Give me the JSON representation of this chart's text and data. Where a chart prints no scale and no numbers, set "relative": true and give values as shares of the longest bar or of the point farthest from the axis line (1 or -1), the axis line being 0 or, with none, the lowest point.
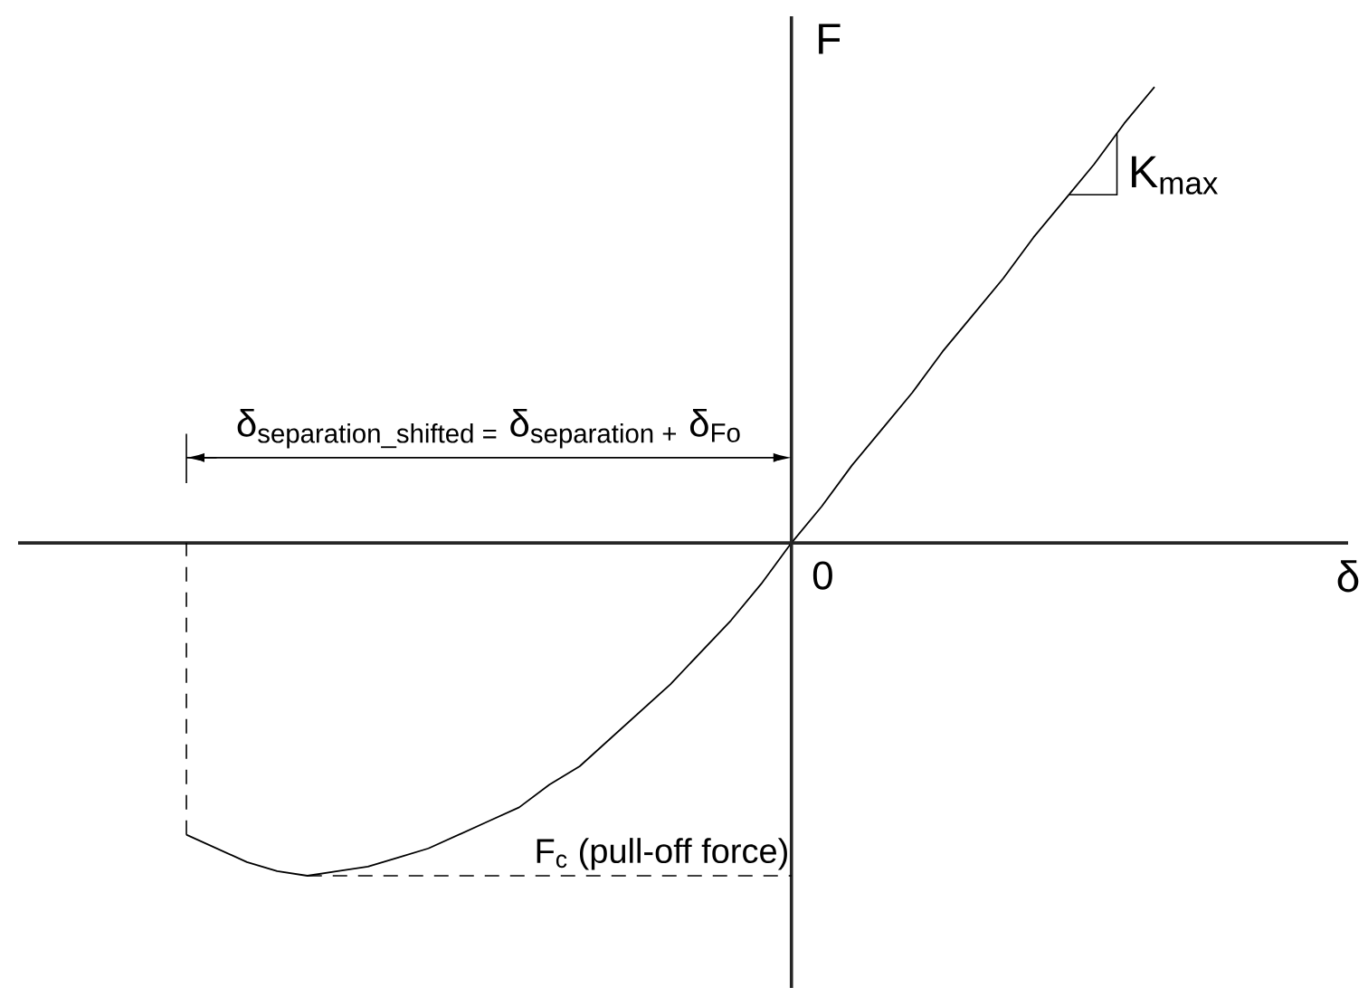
{
  "chart_data": {
    "type": "line",
    "relative": true,
    "xlabel": "δ",
    "ylabel": "F",
    "categories": [
      null,
      null,
      null,
      null,
      null,
      null,
      null,
      null,
      null,
      null,
      null,
      null,
      null,
      null,
      null,
      null,
      null,
      null,
      null,
      null,
      null,
      null,
      null,
      null,
      null,
      null,
      null,
      null,
      null,
      null,
      null,
      null,
      null
    ],
    "series": [
      {
        "color": "#000000",
        "values": [
          -0.64,
          -0.67,
          -0.7,
          -0.72,
          -0.73,
          -0.72,
          -0.71,
          -0.69,
          -0.67,
          -0.64,
          -0.61,
          -0.58,
          -0.53,
          -0.49,
          -0.43,
          -0.37,
          -0.31,
          -0.24,
          -0.17,
          -0.09,
          0,
          0.08,
          0.17,
          0.25,
          0.33,
          0.42,
          0.5,
          0.58,
          0.67,
          0.75,
          0.83,
          0.92,
          1
        ]
      }
    ],
    "ref_lines": [
      {
        "axis": "y",
        "value": -0.73,
        "label": "F$_{c}$ (pull-off force)",
        "line_style": "dashed",
        "color": "#000000"
      }
    ],
    "annotations": [
      "δ$_{separation_shifted =}$ δ$_{separation +}$ δ$_{Fo}$",
      "K$_{max}$",
      "0"
    ],
    "marker": "none",
    "line_style": "solid"
  }
}
